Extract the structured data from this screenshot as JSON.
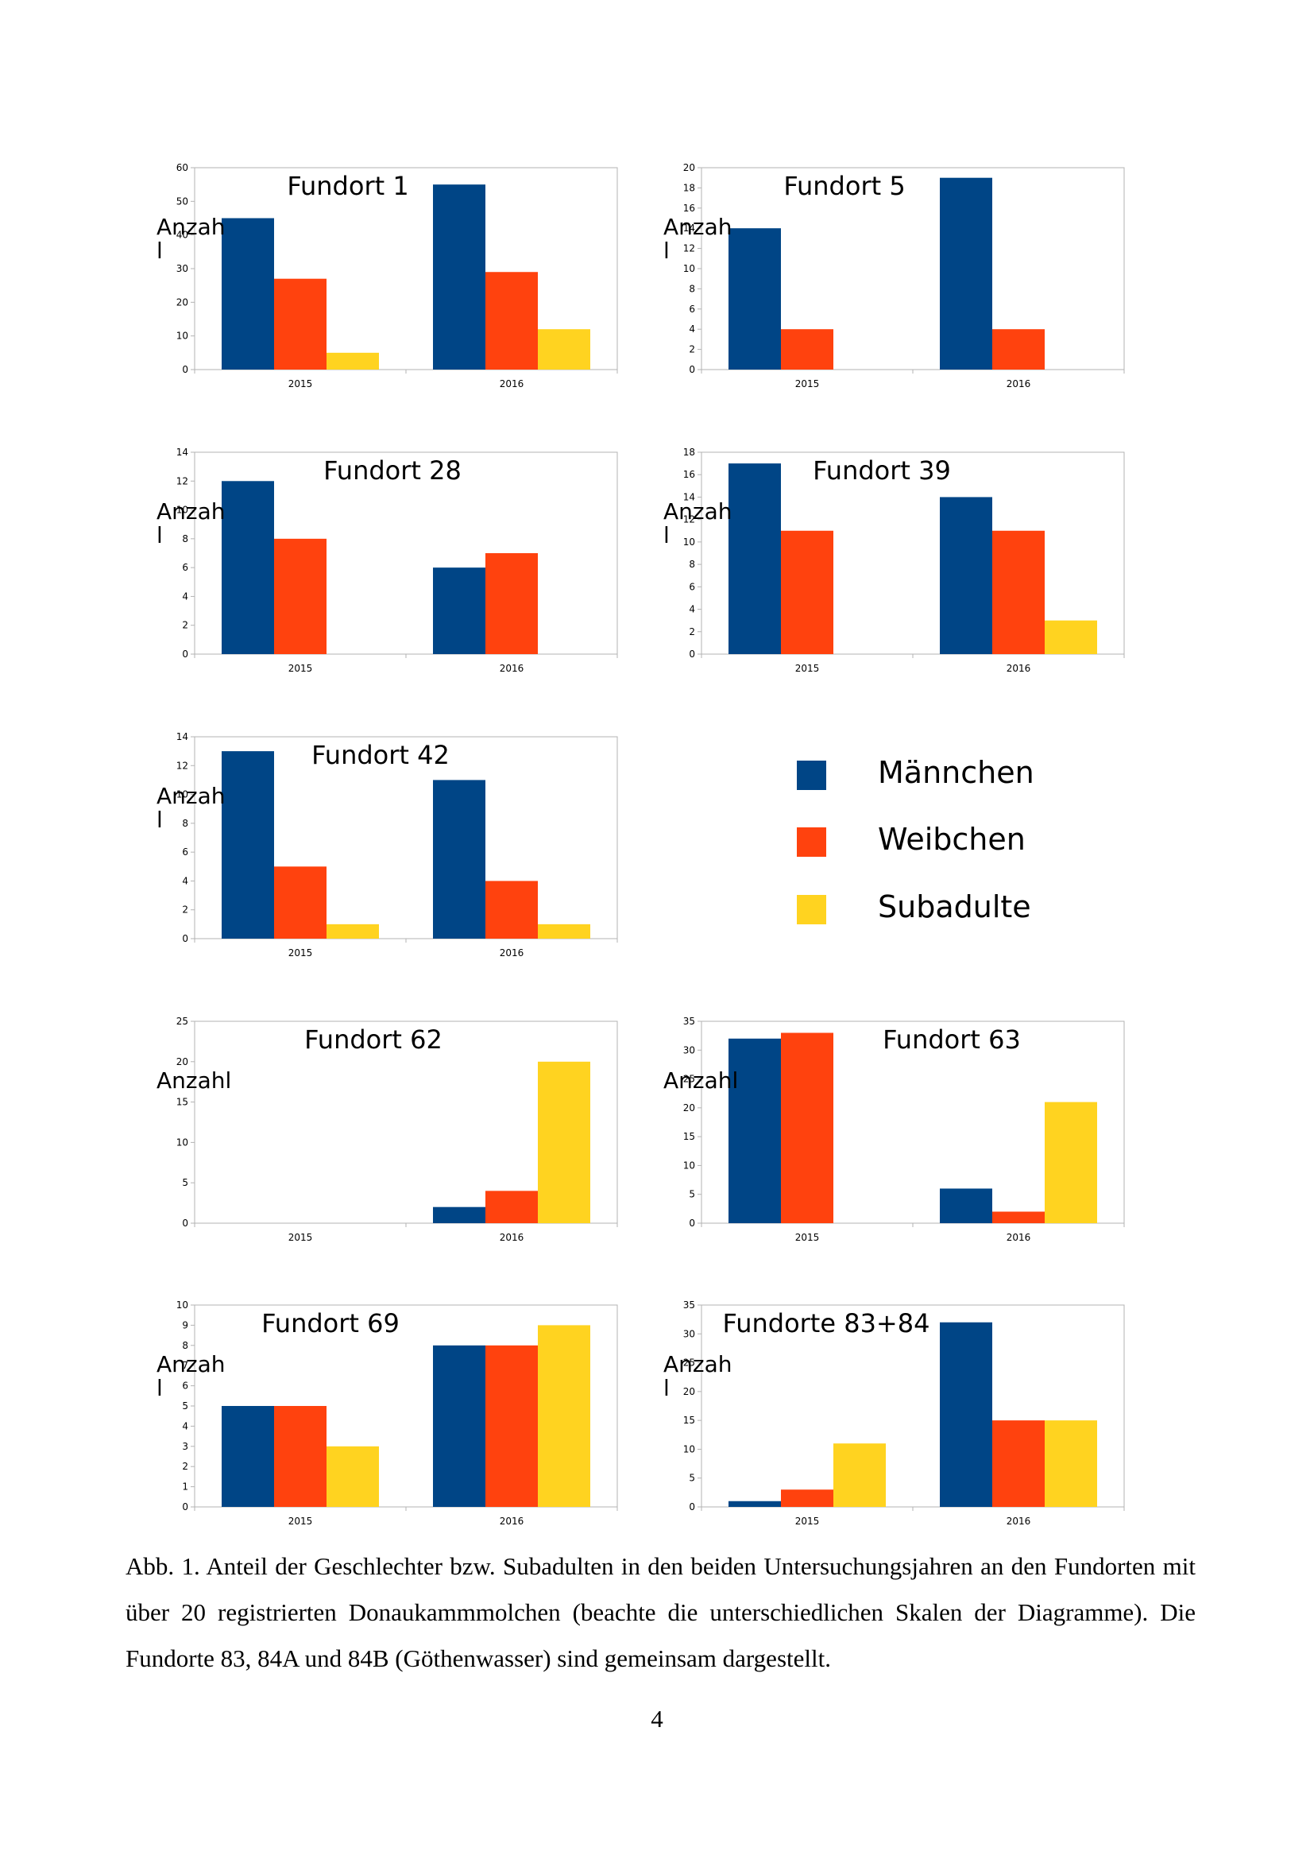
{
  "colors": {
    "maennchen": "#004586",
    "weibchen": "#ff420e",
    "subadulte": "#ffd320",
    "axis": "#b3b3b3",
    "plot_border": "#b3b3b3"
  },
  "legend": {
    "position": "right-of-third-row",
    "items": [
      {
        "label": "Männchen",
        "color": "#004586"
      },
      {
        "label": "Weibchen",
        "color": "#ff420e"
      },
      {
        "label": "Subadulte",
        "color": "#ffd320"
      }
    ]
  },
  "chart_data": [
    {
      "type": "bar",
      "title": "Fundort 1",
      "ylabel": "Anzahl",
      "ylabel_lines": [
        "Anzah",
        "l"
      ],
      "categories": [
        "2015",
        "2016"
      ],
      "ylim": [
        0,
        60
      ],
      "yticks": [
        0,
        10,
        20,
        30,
        40,
        50,
        60
      ],
      "series": [
        {
          "name": "Männchen",
          "values": [
            45,
            55
          ]
        },
        {
          "name": "Weibchen",
          "values": [
            27,
            29
          ]
        },
        {
          "name": "Subadulte",
          "values": [
            5,
            12
          ]
        }
      ]
    },
    {
      "type": "bar",
      "title": "Fundort 5",
      "ylabel": "Anzahl",
      "ylabel_lines": [
        "Anzah",
        "l"
      ],
      "categories": [
        "2015",
        "2016"
      ],
      "ylim": [
        0,
        20
      ],
      "yticks": [
        0,
        2,
        4,
        6,
        8,
        10,
        12,
        14,
        16,
        18,
        20
      ],
      "series": [
        {
          "name": "Männchen",
          "values": [
            14,
            19
          ]
        },
        {
          "name": "Weibchen",
          "values": [
            4,
            4
          ]
        },
        {
          "name": "Subadulte",
          "values": [
            0,
            0
          ]
        }
      ]
    },
    {
      "type": "bar",
      "title": "Fundort 28",
      "ylabel": "Anzahl",
      "ylabel_lines": [
        "Anzah",
        "l"
      ],
      "categories": [
        "2015",
        "2016"
      ],
      "ylim": [
        0,
        14
      ],
      "yticks": [
        0,
        2,
        4,
        6,
        8,
        10,
        12,
        14
      ],
      "series": [
        {
          "name": "Männchen",
          "values": [
            12,
            6
          ]
        },
        {
          "name": "Weibchen",
          "values": [
            8,
            7
          ]
        },
        {
          "name": "Subadulte",
          "values": [
            0,
            0
          ]
        }
      ]
    },
    {
      "type": "bar",
      "title": "Fundort 39",
      "ylabel": "Anzahl",
      "ylabel_lines": [
        "Anzah",
        "l"
      ],
      "categories": [
        "2015",
        "2016"
      ],
      "ylim": [
        0,
        18
      ],
      "yticks": [
        0,
        2,
        4,
        6,
        8,
        10,
        12,
        14,
        16,
        18
      ],
      "series": [
        {
          "name": "Männchen",
          "values": [
            17,
            14
          ]
        },
        {
          "name": "Weibchen",
          "values": [
            11,
            11
          ]
        },
        {
          "name": "Subadulte",
          "values": [
            0,
            3
          ]
        }
      ]
    },
    {
      "type": "bar",
      "title": "Fundort 42",
      "ylabel": "Anzahl",
      "ylabel_lines": [
        "Anzah",
        "l"
      ],
      "categories": [
        "2015",
        "2016"
      ],
      "ylim": [
        0,
        14
      ],
      "yticks": [
        0,
        2,
        4,
        6,
        8,
        10,
        12,
        14
      ],
      "series": [
        {
          "name": "Männchen",
          "values": [
            13,
            11
          ]
        },
        {
          "name": "Weibchen",
          "values": [
            5,
            4
          ]
        },
        {
          "name": "Subadulte",
          "values": [
            1,
            1
          ]
        }
      ]
    },
    null,
    {
      "type": "bar",
      "title": "Fundort 62",
      "ylabel": "Anzahl",
      "ylabel_lines": [
        "Anzahl"
      ],
      "categories": [
        "2015",
        "2016"
      ],
      "ylim": [
        0,
        25
      ],
      "yticks": [
        0,
        5,
        10,
        15,
        20,
        25
      ],
      "series": [
        {
          "name": "Männchen",
          "values": [
            0,
            2
          ]
        },
        {
          "name": "Weibchen",
          "values": [
            0,
            4
          ]
        },
        {
          "name": "Subadulte",
          "values": [
            0,
            20
          ]
        }
      ]
    },
    {
      "type": "bar",
      "title": "Fundort 63",
      "ylabel": "Anzahl",
      "ylabel_lines": [
        "Anzahl"
      ],
      "categories": [
        "2015",
        "2016"
      ],
      "ylim": [
        0,
        35
      ],
      "yticks": [
        0,
        5,
        10,
        15,
        20,
        25,
        30,
        35
      ],
      "series": [
        {
          "name": "Männchen",
          "values": [
            32,
            6
          ]
        },
        {
          "name": "Weibchen",
          "values": [
            33,
            2
          ]
        },
        {
          "name": "Subadulte",
          "values": [
            0,
            21
          ]
        }
      ]
    },
    {
      "type": "bar",
      "title": "Fundort 69",
      "ylabel": "Anzahl",
      "ylabel_lines": [
        "Anzah",
        "l"
      ],
      "categories": [
        "2015",
        "2016"
      ],
      "ylim": [
        0,
        10
      ],
      "yticks": [
        0,
        1,
        2,
        3,
        4,
        5,
        6,
        7,
        8,
        9,
        10
      ],
      "series": [
        {
          "name": "Männchen",
          "values": [
            5,
            8
          ]
        },
        {
          "name": "Weibchen",
          "values": [
            5,
            8
          ]
        },
        {
          "name": "Subadulte",
          "values": [
            3,
            9
          ]
        }
      ]
    },
    {
      "type": "bar",
      "title": "Fundorte 83+84",
      "ylabel": "Anzahl",
      "ylabel_lines": [
        "Anzah",
        "l"
      ],
      "categories": [
        "2015",
        "2016"
      ],
      "ylim": [
        0,
        35
      ],
      "yticks": [
        0,
        5,
        10,
        15,
        20,
        25,
        30,
        35
      ],
      "series": [
        {
          "name": "Männchen",
          "values": [
            1,
            32
          ]
        },
        {
          "name": "Weibchen",
          "values": [
            3,
            15
          ]
        },
        {
          "name": "Subadulte",
          "values": [
            11,
            15
          ]
        }
      ]
    }
  ],
  "caption": "Abb. 1. Anteil der Geschlechter bzw. Subadulten in den beiden Untersuchungsjahren an den Fundorten mit über 20 registrierten Donaukammmolchen (beachte die unterschiedlichen Skalen der Diagramme). Die Fundorte 83, 84A und 84B (Göthenwasser) sind gemeinsam dargestellt.",
  "page_number": "4"
}
